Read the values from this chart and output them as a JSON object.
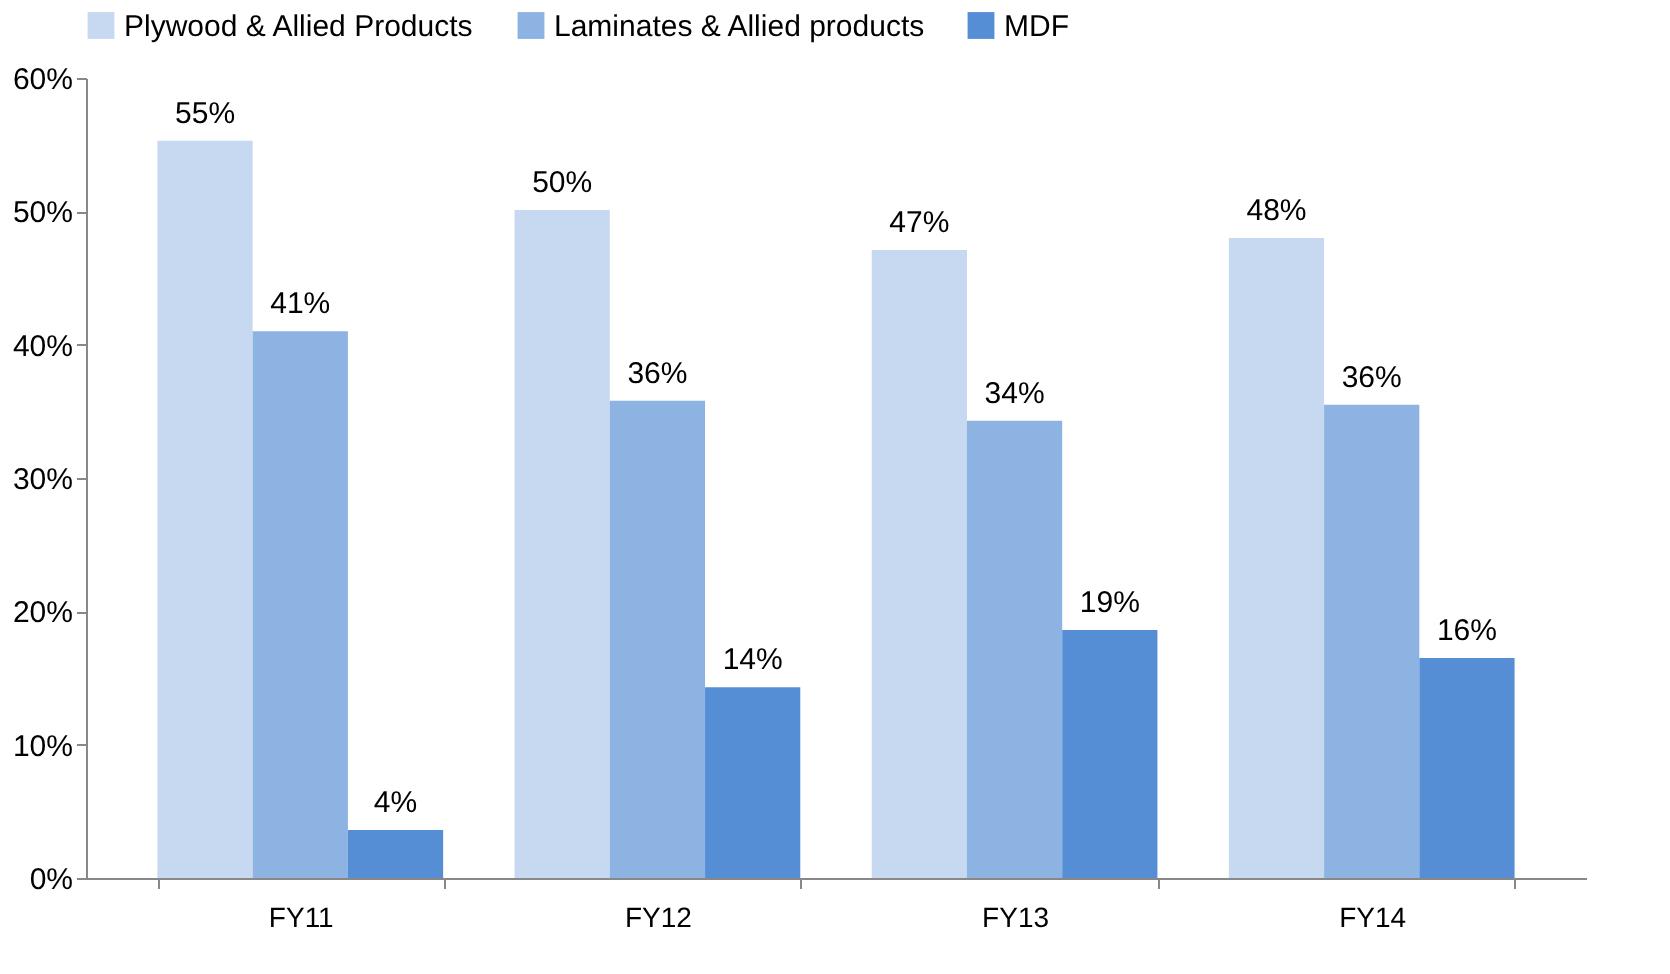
{
  "chart_data": {
    "type": "bar",
    "categories": [
      "FY11",
      "FY12",
      "FY13",
      "FY14"
    ],
    "series": [
      {
        "name": "Plywood & Allied Products",
        "color": "#c6d9f1",
        "values": [
          55.3,
          50.1,
          47.1,
          48
        ],
        "value_labels": [
          "55%",
          "50%",
          "47%",
          "48%"
        ]
      },
      {
        "name": "Laminates & Allied products",
        "color": "#8db3e2",
        "values": [
          41,
          35.8,
          34.3,
          35.5
        ],
        "value_labels": [
          "41%",
          "36%",
          "34%",
          "36%"
        ]
      },
      {
        "name": "MDF",
        "color": "#558ed5",
        "values": [
          3.6,
          14.3,
          18.6,
          16.5
        ],
        "value_labels": [
          "4%",
          "14%",
          "19%",
          "16%"
        ]
      }
    ],
    "ylim": [
      0,
      60
    ],
    "yticks": [
      {
        "value": 0,
        "label": "0%"
      },
      {
        "value": 10,
        "label": "10%"
      },
      {
        "value": 20,
        "label": "20%"
      },
      {
        "value": 30,
        "label": "30%"
      },
      {
        "value": 40,
        "label": "40%"
      },
      {
        "value": 50,
        "label": "50%"
      },
      {
        "value": 60,
        "label": "60%"
      }
    ],
    "grid": false,
    "legend": "top"
  }
}
